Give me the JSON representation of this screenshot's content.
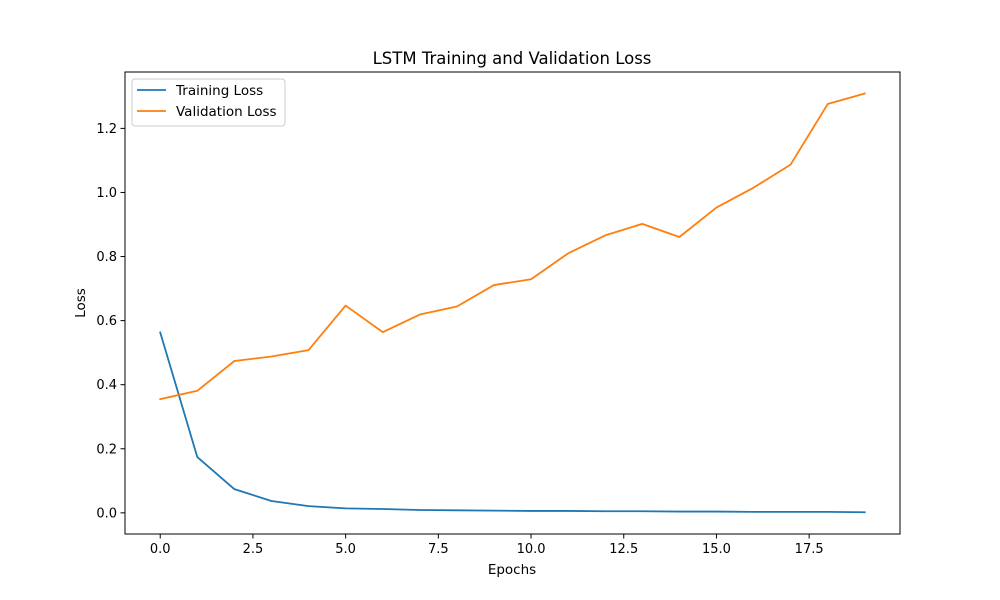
{
  "chart_data": {
    "type": "line",
    "title": "LSTM Training and Validation Loss",
    "xlabel": "Epochs",
    "ylabel": "Loss",
    "xlim": [
      -0.95,
      19.95
    ],
    "ylim": [
      -0.066,
      1.376
    ],
    "xticks": [
      0.0,
      2.5,
      5.0,
      7.5,
      10.0,
      12.5,
      15.0,
      17.5
    ],
    "xtick_labels": [
      "0.0",
      "2.5",
      "5.0",
      "7.5",
      "10.0",
      "12.5",
      "15.0",
      "17.5"
    ],
    "yticks": [
      0.0,
      0.2,
      0.4,
      0.6,
      0.8,
      1.0,
      1.2
    ],
    "ytick_labels": [
      "0.0",
      "0.2",
      "0.4",
      "0.6",
      "0.8",
      "1.0",
      "1.2"
    ],
    "grid": false,
    "legend_position": "top-left",
    "x": [
      0,
      1,
      2,
      3,
      4,
      5,
      6,
      7,
      8,
      9,
      10,
      11,
      12,
      13,
      14,
      15,
      16,
      17,
      18,
      19
    ],
    "series": [
      {
        "name": "Training Loss",
        "color": "#1f77b4",
        "values": [
          0.563,
          0.174,
          0.074,
          0.037,
          0.021,
          0.014,
          0.012,
          0.009,
          0.008,
          0.007,
          0.006,
          0.006,
          0.005,
          0.005,
          0.004,
          0.004,
          0.003,
          0.003,
          0.003,
          0.002
        ]
      },
      {
        "name": "Validation Loss",
        "color": "#ff7f0e",
        "values": [
          0.355,
          0.381,
          0.474,
          0.488,
          0.508,
          0.647,
          0.564,
          0.619,
          0.644,
          0.711,
          0.729,
          0.81,
          0.866,
          0.902,
          0.861,
          0.953,
          1.015,
          1.087,
          1.276,
          1.309
        ]
      }
    ]
  }
}
